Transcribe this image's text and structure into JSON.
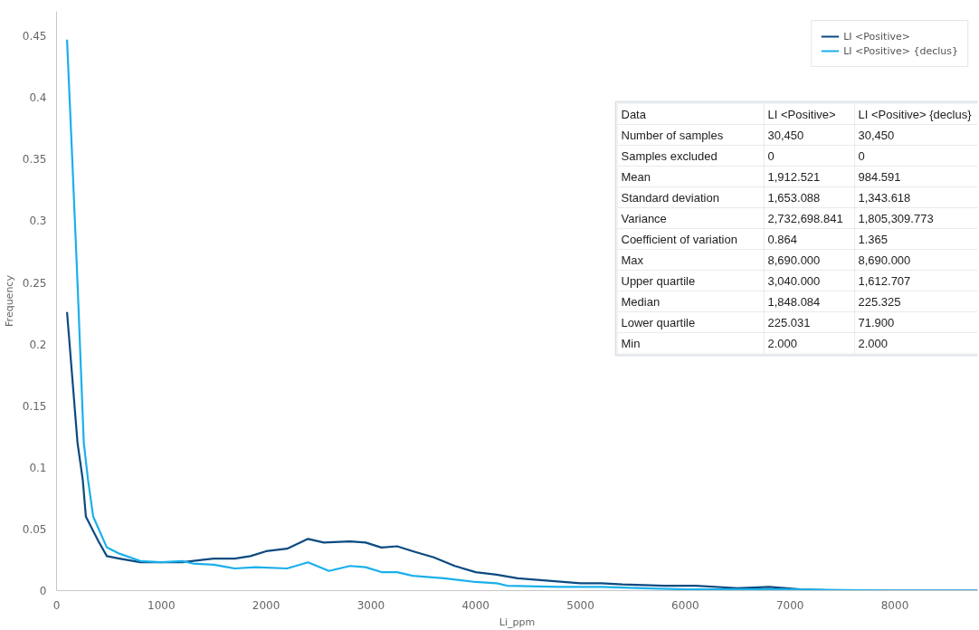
{
  "chart_data": {
    "type": "line",
    "xlabel": "Li_ppm",
    "ylabel": "Frequency",
    "xlim": [
      0,
      8790
    ],
    "ylim": [
      0,
      0.47
    ],
    "xticks": [
      0,
      1000,
      2000,
      3000,
      4000,
      5000,
      6000,
      7000,
      8000
    ],
    "yticks": [
      0,
      0.05,
      0.1,
      0.15,
      0.2,
      0.25,
      0.3,
      0.35,
      0.4,
      0.45
    ],
    "grid": false,
    "legend": "top right",
    "marker": "none",
    "line_style": "solid",
    "series": [
      {
        "name": "LI <Positive>",
        "color": "#0b4a80",
        "x": [
          100,
          200,
          250,
          280,
          400,
          480,
          600,
          800,
          1000,
          1200,
          1400,
          1500,
          1700,
          1850,
          2000,
          2200,
          2300,
          2400,
          2550,
          2800,
          2950,
          3100,
          3250,
          3400,
          3600,
          3800,
          4000,
          4200,
          4400,
          4700,
          5000,
          5200,
          5400,
          5800,
          6100,
          6500,
          6800,
          7100,
          7500,
          8790
        ],
        "values": [
          0.226,
          0.12,
          0.09,
          0.06,
          0.04,
          0.028,
          0.026,
          0.023,
          0.023,
          0.023,
          0.025,
          0.026,
          0.026,
          0.028,
          0.032,
          0.034,
          0.038,
          0.042,
          0.039,
          0.04,
          0.039,
          0.035,
          0.036,
          0.032,
          0.027,
          0.02,
          0.015,
          0.013,
          0.01,
          0.008,
          0.006,
          0.006,
          0.005,
          0.004,
          0.004,
          0.002,
          0.003,
          0.001,
          0.0,
          0.0
        ]
      },
      {
        "name": "LI <Positive> {declus}",
        "color": "#1ab0ea",
        "x": [
          100,
          150,
          200,
          260,
          300,
          350,
          480,
          600,
          800,
          1000,
          1200,
          1300,
          1500,
          1700,
          1900,
          2200,
          2400,
          2600,
          2800,
          2950,
          3100,
          3250,
          3400,
          3700,
          4000,
          4200,
          4300,
          4800,
          5200,
          5600,
          6000,
          7000,
          8000,
          8790
        ],
        "values": [
          0.447,
          0.35,
          0.25,
          0.12,
          0.09,
          0.06,
          0.035,
          0.03,
          0.024,
          0.023,
          0.024,
          0.022,
          0.021,
          0.018,
          0.019,
          0.018,
          0.023,
          0.016,
          0.02,
          0.019,
          0.015,
          0.015,
          0.012,
          0.01,
          0.007,
          0.006,
          0.004,
          0.003,
          0.003,
          0.002,
          0.001,
          0.001,
          0.0,
          0.0
        ]
      }
    ],
    "annotations": [
      "Data",
      "LI <Positive>",
      "LI <Positive> {declus}",
      "Number of samples",
      "30,450",
      "30,450",
      "Samples excluded",
      "0",
      "0",
      "Mean",
      "1,912.521",
      "984.591",
      "Standard deviation",
      "1,653.088",
      "1,343.618",
      "Variance",
      "2,732,698.841",
      "1,805,309.773",
      "Coefficient of variation",
      "0.864",
      "1.365",
      "Max",
      "8,690.000",
      "8,690.000",
      "Upper quartile",
      "3,040.000",
      "1,612.707",
      "Median",
      "1,848.084",
      "225.325",
      "Lower quartile",
      "225.031",
      "71.900",
      "Min",
      "2.000",
      "2.000"
    ]
  }
}
